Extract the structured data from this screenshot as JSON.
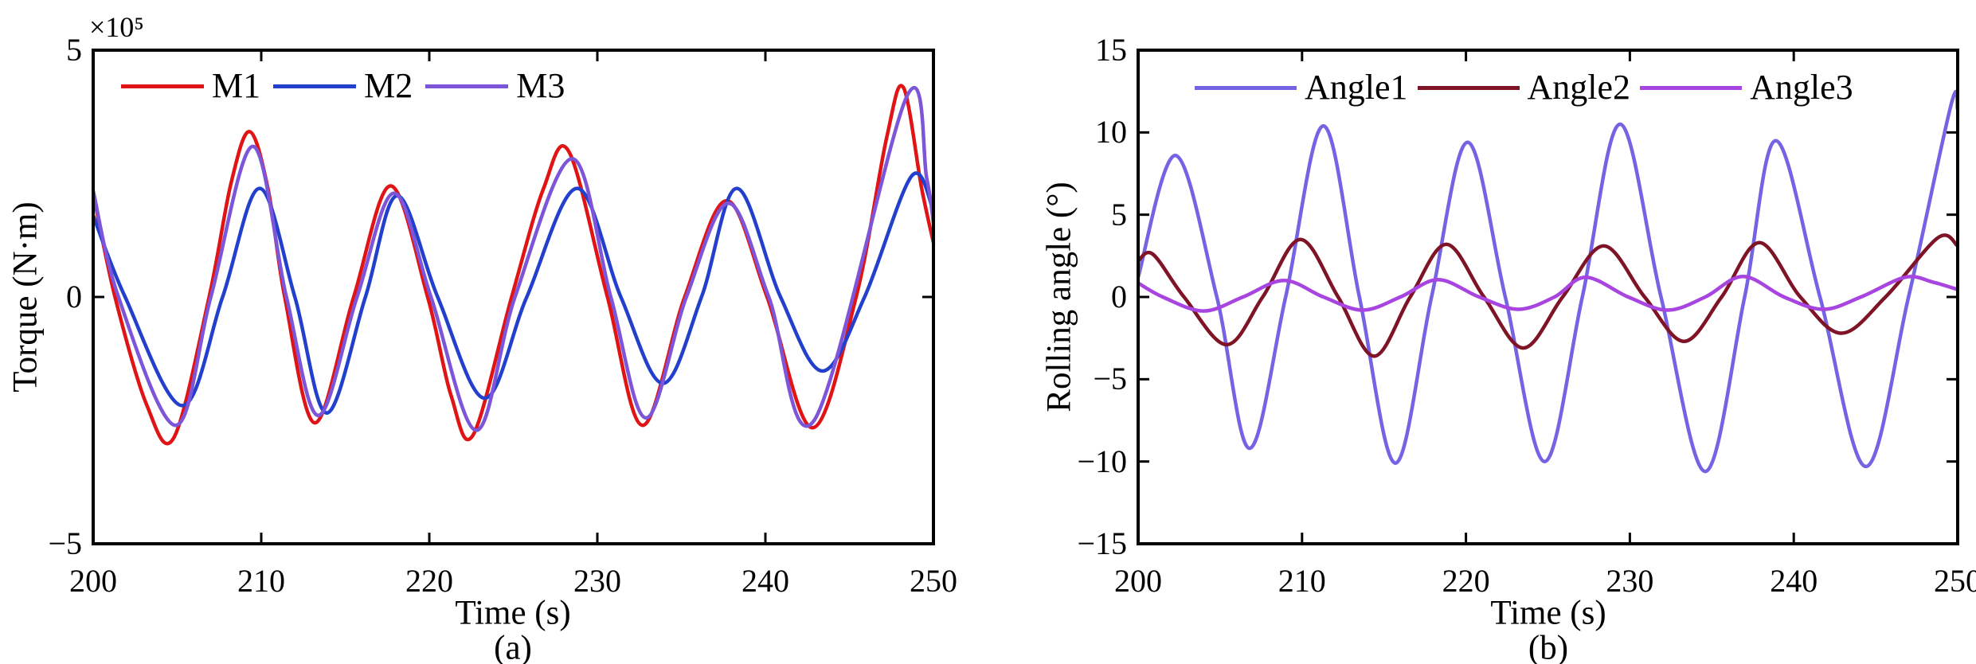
{
  "figure": {
    "background": "#ffffff"
  },
  "chart_data": [
    {
      "type": "line",
      "panel": "a",
      "caption": "(a)",
      "xlabel": "Time (s)",
      "ylabel": "Torque (N·m)",
      "y_multiplier": "×10⁵",
      "xlim": [
        200,
        250
      ],
      "ylim": [
        -5,
        5
      ],
      "grid": false,
      "legend_position": "top-inside-horizontal",
      "xticks": [
        {
          "v": 200,
          "label": "200"
        },
        {
          "v": 210,
          "label": "210"
        },
        {
          "v": 220,
          "label": "220"
        },
        {
          "v": 230,
          "label": "230"
        },
        {
          "v": 240,
          "label": "240"
        },
        {
          "v": 250,
          "label": "250"
        }
      ],
      "yticks": [
        {
          "v": 5,
          "label": "5"
        },
        {
          "v": 0,
          "label": "0"
        },
        {
          "v": -5,
          "label": "−5"
        }
      ],
      "series": [
        {
          "name": "M1",
          "color": "#e01414",
          "points": [
            [
              200,
              2.1
            ],
            [
              201.3,
              0
            ],
            [
              203.2,
              -2.2
            ],
            [
              204.8,
              -2.85
            ],
            [
              206.9,
              0
            ],
            [
              208.2,
              2.3
            ],
            [
              209.3,
              3.35
            ],
            [
              210.4,
              2.2
            ],
            [
              211.4,
              0
            ],
            [
              213.2,
              -2.55
            ],
            [
              215.5,
              0
            ],
            [
              217.7,
              2.25
            ],
            [
              219.9,
              0
            ],
            [
              221.3,
              -2.0
            ],
            [
              222.6,
              -2.8
            ],
            [
              224.9,
              0
            ],
            [
              226.8,
              2.2
            ],
            [
              228.3,
              2.95
            ],
            [
              230.6,
              0
            ],
            [
              232.7,
              -2.6
            ],
            [
              235.2,
              0
            ],
            [
              237.7,
              1.95
            ],
            [
              240.1,
              0
            ],
            [
              242.8,
              -2.65
            ],
            [
              245.4,
              0
            ],
            [
              247.2,
              3.2
            ],
            [
              248.2,
              4.25
            ],
            [
              249.3,
              2.2
            ],
            [
              250,
              1.1
            ]
          ]
        },
        {
          "name": "M2",
          "color": "#2340cd",
          "points": [
            [
              200,
              1.65
            ],
            [
              201.9,
              0
            ],
            [
              205.3,
              -2.2
            ],
            [
              207.7,
              0
            ],
            [
              209.9,
              2.2
            ],
            [
              212.0,
              0
            ],
            [
              213.9,
              -2.35
            ],
            [
              216.2,
              0
            ],
            [
              218.1,
              2.05
            ],
            [
              220.5,
              0
            ],
            [
              223.3,
              -2.05
            ],
            [
              225.8,
              0
            ],
            [
              228.8,
              2.2
            ],
            [
              231.4,
              0
            ],
            [
              233.9,
              -1.75
            ],
            [
              236.2,
              0
            ],
            [
              238.3,
              2.2
            ],
            [
              240.9,
              0
            ],
            [
              243.4,
              -1.5
            ],
            [
              245.9,
              0
            ],
            [
              248.7,
              2.45
            ],
            [
              250,
              1.75
            ]
          ]
        },
        {
          "name": "M3",
          "color": "#7d55d8",
          "points": [
            [
              200,
              2.15
            ],
            [
              201.5,
              0
            ],
            [
              204.9,
              -2.6
            ],
            [
              207.0,
              0
            ],
            [
              209.5,
              3.05
            ],
            [
              211.5,
              0
            ],
            [
              213.4,
              -2.4
            ],
            [
              215.7,
              0
            ],
            [
              217.9,
              2.1
            ],
            [
              220.1,
              0
            ],
            [
              222.8,
              -2.7
            ],
            [
              225.1,
              0
            ],
            [
              228.5,
              2.8
            ],
            [
              230.8,
              0
            ],
            [
              232.9,
              -2.45
            ],
            [
              235.3,
              0
            ],
            [
              237.8,
              1.9
            ],
            [
              240.2,
              0
            ],
            [
              242.9,
              -2.5
            ],
            [
              248.4,
              4.05
            ],
            [
              249.6,
              2.4
            ],
            [
              250,
              1.5
            ]
          ]
        }
      ]
    },
    {
      "type": "line",
      "panel": "b",
      "caption": "(b)",
      "xlabel": "Time (s)",
      "ylabel": "Rolling angle (°)",
      "y_multiplier": "",
      "xlim": [
        200,
        250
      ],
      "ylim": [
        -15,
        15
      ],
      "grid": false,
      "legend_position": "top-inside-horizontal",
      "xticks": [
        {
          "v": 200,
          "label": "200"
        },
        {
          "v": 210,
          "label": "210"
        },
        {
          "v": 220,
          "label": "220"
        },
        {
          "v": 230,
          "label": "230"
        },
        {
          "v": 240,
          "label": "240"
        },
        {
          "v": 250,
          "label": "250"
        }
      ],
      "yticks": [
        {
          "v": 15,
          "label": "15"
        },
        {
          "v": 10,
          "label": "10"
        },
        {
          "v": 5,
          "label": "5"
        },
        {
          "v": 0,
          "label": "0"
        },
        {
          "v": -5,
          "label": "−5"
        },
        {
          "v": -10,
          "label": "−10"
        },
        {
          "v": -15,
          "label": "−15"
        }
      ],
      "series": [
        {
          "name": "Angle1",
          "color": "#7463e3",
          "points": [
            [
              200,
              1.2
            ],
            [
              202.3,
              8.6
            ],
            [
              204.8,
              0
            ],
            [
              206.8,
              -9.2
            ],
            [
              209.0,
              0
            ],
            [
              211.3,
              10.4
            ],
            [
              213.5,
              0
            ],
            [
              215.7,
              -10.1
            ],
            [
              217.9,
              0
            ],
            [
              220.1,
              9.4
            ],
            [
              222.4,
              0
            ],
            [
              224.8,
              -10.0
            ],
            [
              227.1,
              0
            ],
            [
              229.4,
              10.5
            ],
            [
              231.9,
              0
            ],
            [
              234.6,
              -10.6
            ],
            [
              237.0,
              0
            ],
            [
              238.9,
              9.5
            ],
            [
              241.6,
              0
            ],
            [
              244.4,
              -10.3
            ],
            [
              247.0,
              0
            ],
            [
              249.6,
              11.7
            ],
            [
              250,
              11.4
            ]
          ]
        },
        {
          "name": "Angle2",
          "color": "#7f1427",
          "points": [
            [
              200,
              2.2
            ],
            [
              200.9,
              2.6
            ],
            [
              202.8,
              0
            ],
            [
              205.4,
              -2.9
            ],
            [
              207.6,
              0
            ],
            [
              209.9,
              3.5
            ],
            [
              212.2,
              0
            ],
            [
              214.4,
              -3.6
            ],
            [
              216.6,
              0
            ],
            [
              218.8,
              3.2
            ],
            [
              221.1,
              0
            ],
            [
              223.5,
              -3.1
            ],
            [
              225.9,
              0
            ],
            [
              228.4,
              3.1
            ],
            [
              230.9,
              0
            ],
            [
              233.3,
              -2.7
            ],
            [
              235.6,
              0
            ],
            [
              237.9,
              3.3
            ],
            [
              240.4,
              0
            ],
            [
              242.9,
              -2.2
            ],
            [
              245.6,
              0
            ],
            [
              248.8,
              3.6
            ],
            [
              250,
              3.1
            ]
          ]
        },
        {
          "name": "Angle3",
          "color": "#a845e0",
          "points": [
            [
              200,
              0.85
            ],
            [
              201.5,
              0
            ],
            [
              204.0,
              -0.85
            ],
            [
              206.4,
              0
            ],
            [
              208.9,
              1.0
            ],
            [
              211.3,
              0
            ],
            [
              213.7,
              -0.8
            ],
            [
              216.0,
              0
            ],
            [
              218.3,
              1.05
            ],
            [
              220.8,
              0
            ],
            [
              223.2,
              -0.75
            ],
            [
              225.4,
              0
            ],
            [
              227.3,
              1.2
            ],
            [
              229.9,
              0
            ],
            [
              232.3,
              -0.8
            ],
            [
              234.6,
              0
            ],
            [
              236.9,
              1.25
            ],
            [
              239.4,
              0
            ],
            [
              241.8,
              -0.75
            ],
            [
              244.1,
              0
            ],
            [
              246.8,
              1.2
            ],
            [
              248.5,
              0.9
            ],
            [
              250,
              0.45
            ]
          ]
        }
      ]
    }
  ]
}
